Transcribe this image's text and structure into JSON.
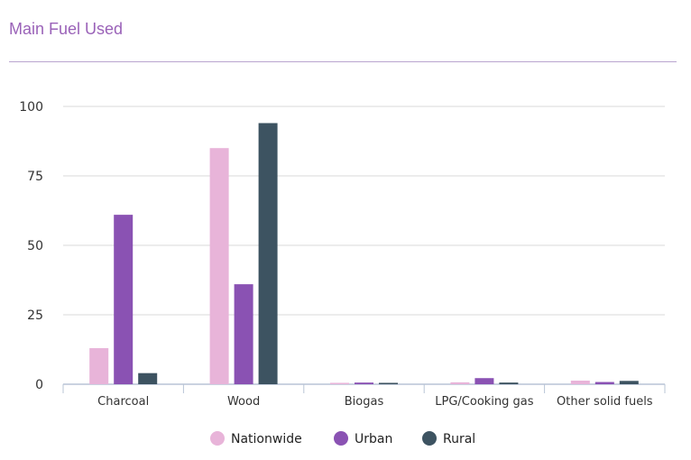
{
  "title": "Main Fuel Used",
  "colors": {
    "Nationwide": "#e8b4d9",
    "Urban": "#8a52b3",
    "Rural": "#3d5361",
    "grid": "#d9d9d9",
    "axis": "#b8c4d6"
  },
  "chart_data": {
    "type": "bar",
    "categories": [
      "Charcoal",
      "Wood",
      "Biogas",
      "LPG/Cooking gas",
      "Other solid fuels"
    ],
    "series": [
      {
        "name": "Nationwide",
        "values": [
          13,
          85,
          0.5,
          0.7,
          1.3
        ]
      },
      {
        "name": "Urban",
        "values": [
          61,
          36,
          0.6,
          2.2,
          0.8
        ]
      },
      {
        "name": "Rural",
        "values": [
          4,
          94,
          0.5,
          0.6,
          1.2
        ]
      }
    ],
    "yticks": [
      "0",
      "25",
      "50",
      "75",
      "100"
    ],
    "ylim": [
      0,
      100
    ],
    "xlabel": "",
    "ylabel": "",
    "grid": true,
    "legend_position": "bottom-center"
  }
}
